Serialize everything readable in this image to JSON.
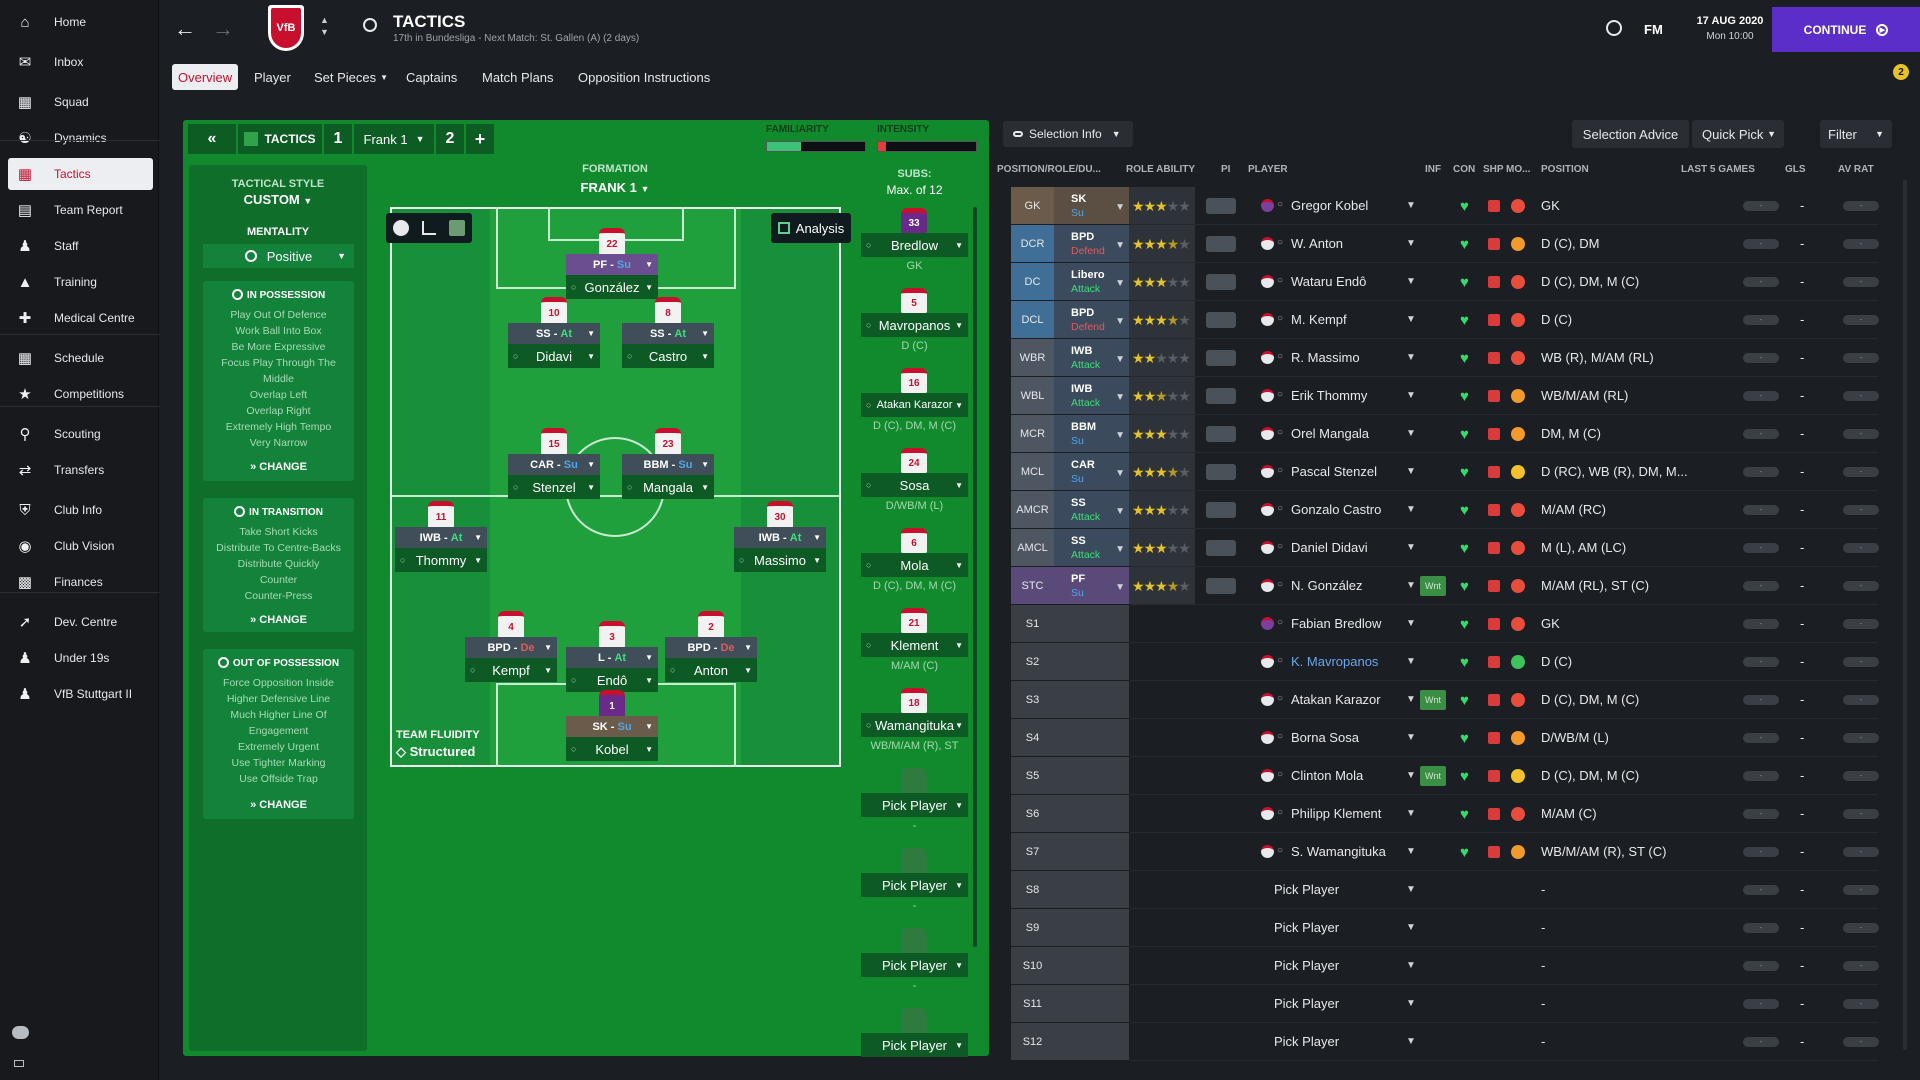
{
  "nav": {
    "items": [
      {
        "label": "Home",
        "icon": "home-icon"
      },
      {
        "label": "Inbox",
        "icon": "inbox-icon"
      },
      {
        "label": "Squad",
        "icon": "squad-icon"
      },
      {
        "label": "Dynamics",
        "icon": "dynamics-icon"
      },
      {
        "label": "Tactics",
        "icon": "tactics-icon"
      },
      {
        "label": "Team Report",
        "icon": "report-icon"
      },
      {
        "label": "Staff",
        "icon": "staff-icon"
      },
      {
        "label": "Training",
        "icon": "training-icon"
      },
      {
        "label": "Medical Centre",
        "icon": "medical-icon"
      },
      {
        "label": "Schedule",
        "icon": "calendar-icon"
      },
      {
        "label": "Competitions",
        "icon": "trophy-icon"
      },
      {
        "label": "Scouting",
        "icon": "search-icon"
      },
      {
        "label": "Transfers",
        "icon": "transfers-icon"
      },
      {
        "label": "Club Info",
        "icon": "shield-icon"
      },
      {
        "label": "Club Vision",
        "icon": "vision-icon"
      },
      {
        "label": "Finances",
        "icon": "finances-icon"
      },
      {
        "label": "Dev. Centre",
        "icon": "dev-centre-icon"
      },
      {
        "label": "Under 19s",
        "icon": "under19-icon"
      },
      {
        "label": "VfB Stuttgart II",
        "icon": "reserve-team-icon"
      }
    ]
  },
  "header": {
    "title": "TACTICS",
    "subtitle": "17th in Bundesliga - Next Match: St. Gallen (A) (2 days)",
    "logo_text": "VfB",
    "fm_label": "FM",
    "date": "17 AUG 2020",
    "time": "Mon 10:00",
    "continue_label": "CONTINUE",
    "notification_count": "2"
  },
  "tabs": [
    "Overview",
    "Player",
    "Set Pieces",
    "Captains",
    "Match Plans",
    "Opposition Instructions"
  ],
  "controls": {
    "tactics_label": "TACTICS",
    "slot1": "1",
    "tactic_name": "Frank 1",
    "slot2": "2",
    "add": "+",
    "familiarity_label": "FAMILIARITY",
    "intensity_label": "INTENSITY",
    "familiarity_value": 0.35,
    "intensity_value": 0.08
  },
  "style": {
    "tactical_style_label": "TACTICAL STYLE",
    "tactical_style": "CUSTOM",
    "mentality_label": "MENTALITY",
    "mentality": "Positive",
    "in_possession_title": "IN POSSESSION",
    "in_possession": [
      "Play Out Of Defence",
      "Work Ball Into Box",
      "Be More Expressive",
      "Focus Play Through The",
      "Middle",
      "Overlap Left",
      "Overlap Right",
      "Extremely High Tempo",
      "Very Narrow"
    ],
    "in_transition_title": "IN TRANSITION",
    "in_transition": [
      "Take Short Kicks",
      "Distribute To Centre-Backs",
      "Distribute Quickly",
      "Counter",
      "Counter-Press"
    ],
    "out_possession_title": "OUT OF POSSESSION",
    "out_possession": [
      "Force Opposition Inside",
      "Higher Defensive Line",
      "Much Higher Line Of",
      "Engagement",
      "Extremely Urgent",
      "Use Tighter Marking",
      "Use Offside Trap"
    ],
    "change_label": "CHANGE"
  },
  "formation": {
    "label": "FORMATION",
    "name": "FRANK 1",
    "analysis_label": "Analysis",
    "fluidity_label": "TEAM FLUIDITY",
    "fluidity": "Structured"
  },
  "pitch_players": [
    {
      "role": "PF",
      "duty": "Su",
      "name": "González",
      "number": "22"
    },
    {
      "role": "SS",
      "duty": "At",
      "name": "Didavi",
      "number": "10"
    },
    {
      "role": "SS",
      "duty": "At",
      "name": "Castro",
      "number": "8"
    },
    {
      "role": "CAR",
      "duty": "Su",
      "name": "Stenzel",
      "number": "15"
    },
    {
      "role": "BBM",
      "duty": "Su",
      "name": "Mangala",
      "number": "23"
    },
    {
      "role": "IWB",
      "duty": "At",
      "name": "Thommy",
      "number": "11"
    },
    {
      "role": "IWB",
      "duty": "At",
      "name": "Massimo",
      "number": "30"
    },
    {
      "role": "BPD",
      "duty": "De",
      "name": "Kempf",
      "number": "4"
    },
    {
      "role": "L",
      "duty": "At",
      "name": "Endô",
      "number": "3"
    },
    {
      "role": "BPD",
      "duty": "De",
      "name": "Anton",
      "number": "2"
    },
    {
      "role": "SK",
      "duty": "Su",
      "name": "Kobel",
      "number": "1"
    }
  ],
  "subs": {
    "label": "SUBS:",
    "max": "Max. of 12",
    "items": [
      {
        "name": "Bredlow",
        "pos": "GK",
        "number": "33"
      },
      {
        "name": "Mavropanos",
        "pos": "D (C)",
        "number": "5"
      },
      {
        "name": "Atakan Karazor",
        "pos": "D (C), DM, M (C)",
        "number": "16"
      },
      {
        "name": "Sosa",
        "pos": "D/WB/M (L)",
        "number": "24"
      },
      {
        "name": "Mola",
        "pos": "D (C), DM, M (C)",
        "number": "6"
      },
      {
        "name": "Klement",
        "pos": "M/AM (C)",
        "number": "21"
      },
      {
        "name": "Wamangituka",
        "pos": "WB/M/AM (R), ST",
        "number": "18"
      },
      {
        "name": "Pick Player",
        "pos": "-",
        "number": ""
      },
      {
        "name": "Pick Player",
        "pos": "-",
        "number": ""
      },
      {
        "name": "Pick Player",
        "pos": "-",
        "number": ""
      },
      {
        "name": "Pick Player",
        "pos": "",
        "number": ""
      }
    ]
  },
  "selection": {
    "selection_info_label": "Selection Info",
    "advice_label": "Selection Advice",
    "quick_pick_label": "Quick Pick",
    "filter_label": "Filter",
    "headers": {
      "pos": "POSITION/ROLE/DU...",
      "ability": "ROLE ABILITY",
      "pi": "PI",
      "player": "PLAYER",
      "inf": "INF",
      "con": "CON",
      "shp": "SHP",
      "mo": "MO...",
      "position": "POSITION",
      "last5": "LAST 5 GAMES",
      "gls": "GLS",
      "avrat": "AV RAT"
    },
    "rows": [
      {
        "pos": "GK",
        "role": "SK",
        "duty": "Su",
        "stars": 3,
        "player": "Gregor Kobel",
        "position": "GK",
        "wnt": "",
        "mo": "red"
      },
      {
        "pos": "DCR",
        "role": "BPD",
        "duty": "Defend",
        "stars": 3.5,
        "player": "W. Anton",
        "position": "D (C), DM",
        "wnt": "",
        "mo": "orange"
      },
      {
        "pos": "DC",
        "role": "Libero",
        "duty": "Attack",
        "stars": 3,
        "player": "Wataru Endô",
        "position": "D (C), DM, M (C)",
        "wnt": "",
        "mo": "red"
      },
      {
        "pos": "DCL",
        "role": "BPD",
        "duty": "Defend",
        "stars": 3.5,
        "player": "M. Kempf",
        "position": "D (C)",
        "wnt": "",
        "mo": "red"
      },
      {
        "pos": "WBR",
        "role": "IWB",
        "duty": "Attack",
        "stars": 2,
        "player": "R. Massimo",
        "position": "WB (R), M/AM (RL)",
        "wnt": "",
        "mo": "red"
      },
      {
        "pos": "WBL",
        "role": "IWB",
        "duty": "Attack",
        "stars": 2.5,
        "player": "Erik Thommy",
        "position": "WB/M/AM (RL)",
        "wnt": "",
        "mo": "orange"
      },
      {
        "pos": "MCR",
        "role": "BBM",
        "duty": "Su",
        "stars": 3,
        "player": "Orel Mangala",
        "position": "DM, M (C)",
        "wnt": "",
        "mo": "orange"
      },
      {
        "pos": "MCL",
        "role": "CAR",
        "duty": "Su",
        "stars": 3.5,
        "player": "Pascal Stenzel",
        "position": "D (RC), WB (R), DM, M...",
        "wnt": "",
        "mo": "yellow"
      },
      {
        "pos": "AMCR",
        "role": "SS",
        "duty": "Attack",
        "stars": 3,
        "player": "Gonzalo Castro",
        "position": "M/AM (RC)",
        "wnt": "",
        "mo": "red"
      },
      {
        "pos": "AMCL",
        "role": "SS",
        "duty": "Attack",
        "stars": 3,
        "player": "Daniel Didavi",
        "position": "M (L), AM (LC)",
        "wnt": "",
        "mo": "red"
      },
      {
        "pos": "STC",
        "role": "PF",
        "duty": "Su",
        "stars": 3.5,
        "player": "N. González",
        "position": "M/AM (RL), ST (C)",
        "wnt": "Wnt",
        "mo": "red"
      },
      {
        "pos": "S1",
        "role": "",
        "duty": "",
        "stars": 0,
        "player": "Fabian Bredlow",
        "position": "GK",
        "wnt": "",
        "mo": "red"
      },
      {
        "pos": "S2",
        "role": "",
        "duty": "",
        "stars": 0,
        "player": "K. Mavropanos",
        "position": "D (C)",
        "wnt": "",
        "mo": "green"
      },
      {
        "pos": "S3",
        "role": "",
        "duty": "",
        "stars": 0,
        "player": "Atakan Karazor",
        "position": "D (C), DM, M (C)",
        "wnt": "Wnt",
        "mo": "red"
      },
      {
        "pos": "S4",
        "role": "",
        "duty": "",
        "stars": 0,
        "player": "Borna Sosa",
        "position": "D/WB/M (L)",
        "wnt": "",
        "mo": "orange"
      },
      {
        "pos": "S5",
        "role": "",
        "duty": "",
        "stars": 0,
        "player": "Clinton Mola",
        "position": "D (C), DM, M (C)",
        "wnt": "Wnt",
        "mo": "yellow"
      },
      {
        "pos": "S6",
        "role": "",
        "duty": "",
        "stars": 0,
        "player": "Philipp Klement",
        "position": "M/AM (C)",
        "wnt": "",
        "mo": "red"
      },
      {
        "pos": "S7",
        "role": "",
        "duty": "",
        "stars": 0,
        "player": "S. Wamangituka",
        "position": "WB/M/AM (R), ST (C)",
        "wnt": "",
        "mo": "orange"
      },
      {
        "pos": "S8",
        "role": "",
        "duty": "",
        "stars": 0,
        "player": "Pick Player",
        "position": "-",
        "wnt": "",
        "mo": ""
      },
      {
        "pos": "S9",
        "role": "",
        "duty": "",
        "stars": 0,
        "player": "Pick Player",
        "position": "-",
        "wnt": "",
        "mo": ""
      },
      {
        "pos": "S10",
        "role": "",
        "duty": "",
        "stars": 0,
        "player": "Pick Player",
        "position": "-",
        "wnt": "",
        "mo": ""
      },
      {
        "pos": "S11",
        "role": "",
        "duty": "",
        "stars": 0,
        "player": "Pick Player",
        "position": "-",
        "wnt": "",
        "mo": ""
      },
      {
        "pos": "S12",
        "role": "",
        "duty": "",
        "stars": 0,
        "player": "Pick Player",
        "position": "-",
        "wnt": "",
        "mo": ""
      }
    ],
    "dash": "-"
  },
  "colors": {
    "accent_red": "#c8102e",
    "pitch_green": "#118a2d",
    "continue_purple": "#5b2dc9",
    "attack_green": "#3be07a",
    "defend_red": "#e35a5a",
    "support_blue": "#4fa6e8"
  }
}
